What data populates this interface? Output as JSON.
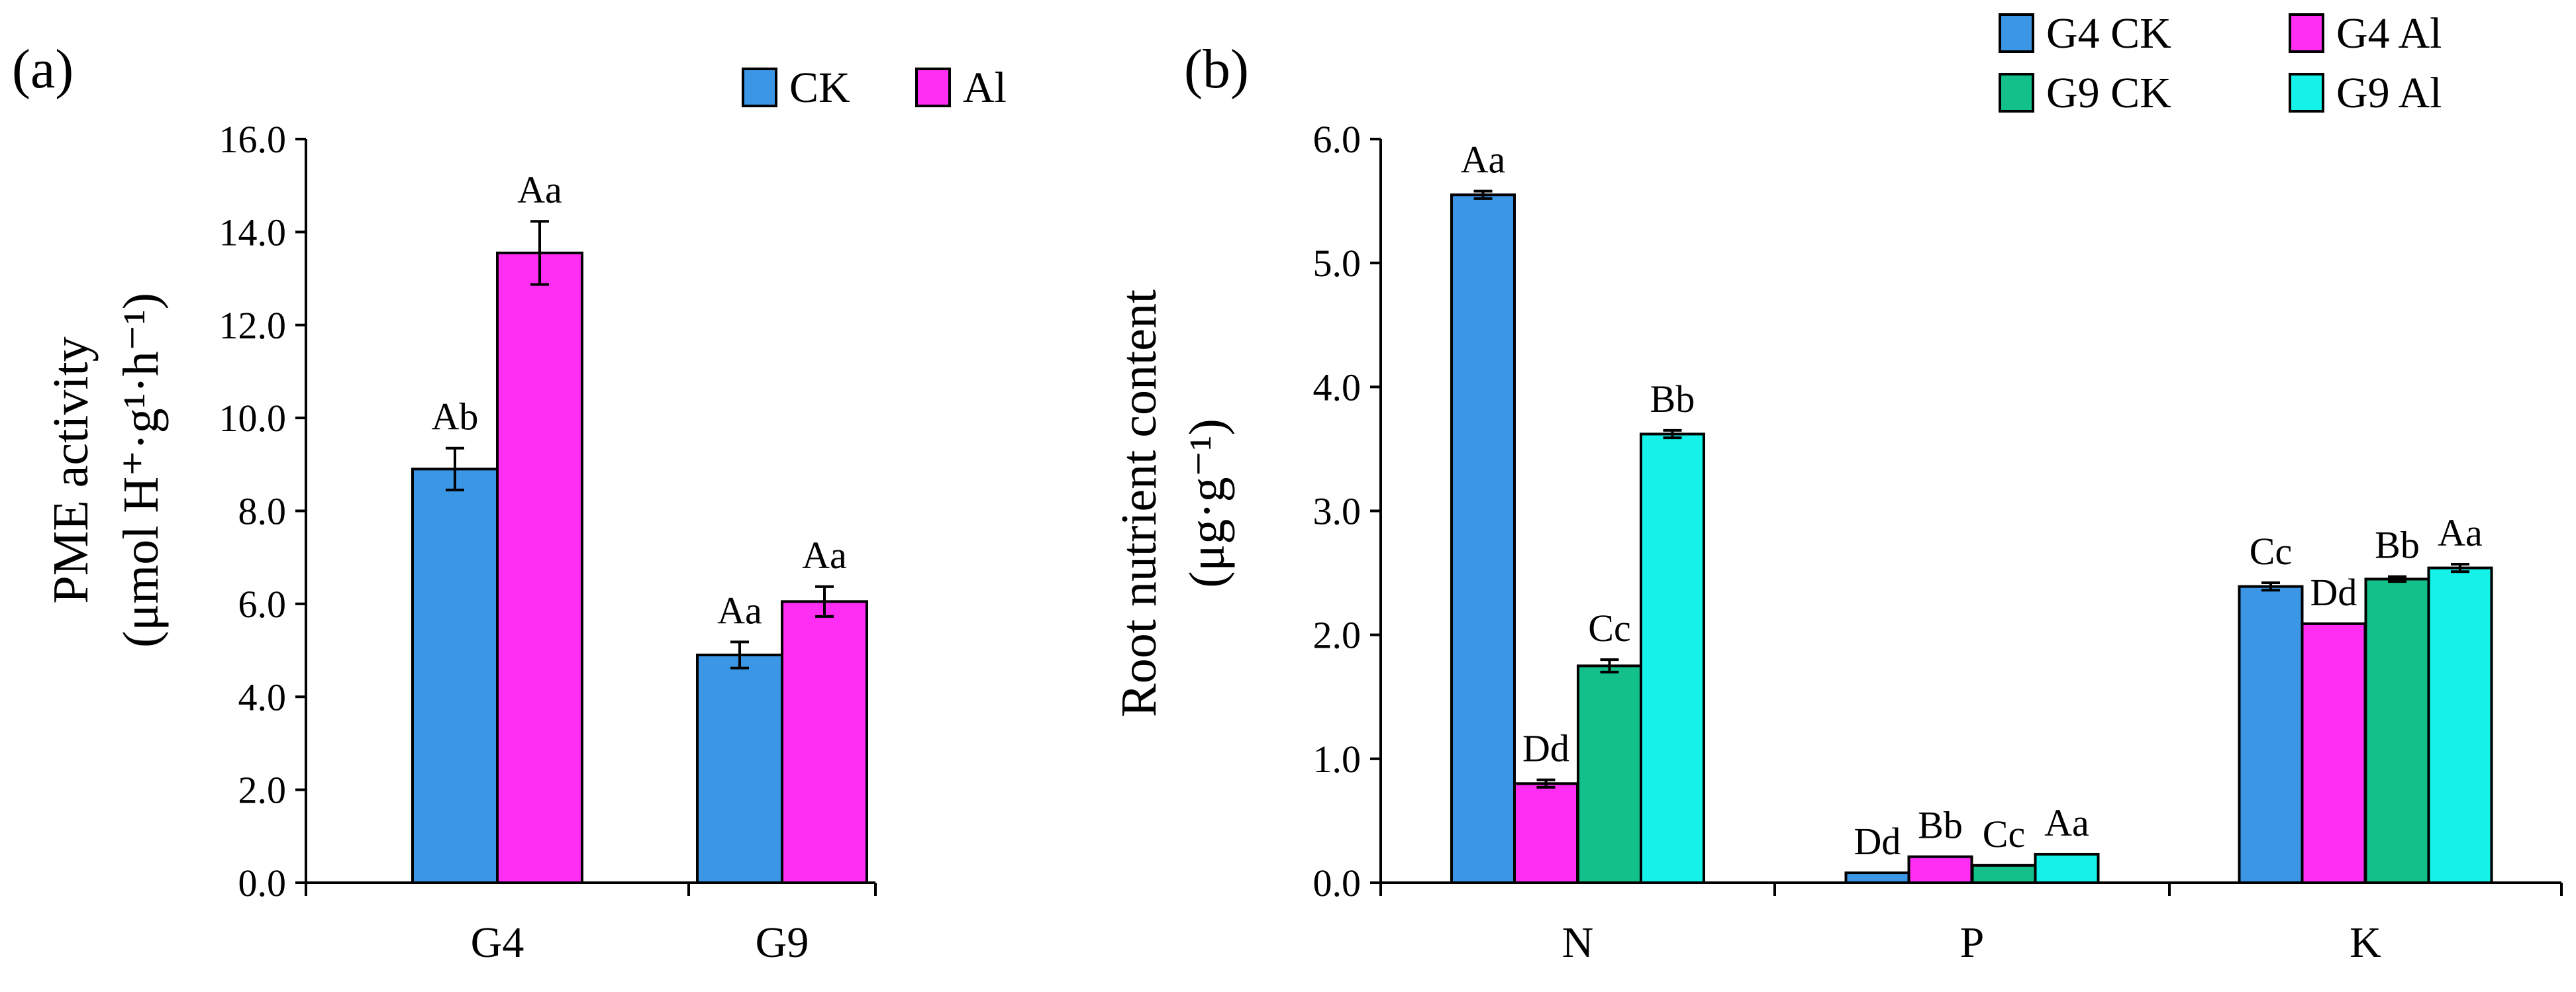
{
  "panels": [
    {
      "id": "a",
      "panel_label": "(a)",
      "y_title_line1": "PME activity",
      "y_title_line2": "(μmol H⁺·g¹·h⁻¹)",
      "legend": [
        {
          "label": "CK",
          "color": "#3c96e6"
        },
        {
          "label": "Al",
          "color": "#ff2ef2"
        }
      ]
    },
    {
      "id": "b",
      "panel_label": "(b)",
      "y_title_line1": "Root nutrient content",
      "y_title_line2": "(μg·g⁻¹)",
      "legend": [
        {
          "label": "G4 CK",
          "color": "#3c96e6"
        },
        {
          "label": "G4 Al",
          "color": "#ff2ef2"
        },
        {
          "label": "G9 CK",
          "color": "#14c08a"
        },
        {
          "label": "G9 Al",
          "color": "#14f2ea"
        }
      ]
    }
  ],
  "chart_data": [
    {
      "type": "bar",
      "title": "",
      "xlabel": "",
      "ylabel": "PME activity (μmol H⁺·g¹·h⁻¹)",
      "ylim": [
        0,
        16
      ],
      "yticks": [
        "0.0",
        "2.0",
        "4.0",
        "6.0",
        "8.0",
        "10.0",
        "12.0",
        "14.0",
        "16.0"
      ],
      "categories": [
        "G4",
        "G9"
      ],
      "series": [
        {
          "name": "CK",
          "color": "#3c96e6",
          "values": [
            8.9,
            4.9
          ],
          "errors": [
            0.45,
            0.28
          ],
          "labels": [
            "Ab",
            "Aa"
          ]
        },
        {
          "name": "Al",
          "color": "#ff2ef2",
          "values": [
            13.55,
            6.05
          ],
          "errors": [
            0.68,
            0.32
          ],
          "labels": [
            "Aa",
            "Aa"
          ]
        }
      ]
    },
    {
      "type": "bar",
      "title": "",
      "xlabel": "",
      "ylabel": "Root nutrient content (μg·g⁻¹)",
      "ylim": [
        0,
        6
      ],
      "yticks": [
        "0.0",
        "1.0",
        "2.0",
        "3.0",
        "4.0",
        "5.0",
        "6.0"
      ],
      "categories": [
        "N",
        "P",
        "K"
      ],
      "series": [
        {
          "name": "G4 CK",
          "color": "#3c96e6",
          "values": [
            5.55,
            0.08,
            2.39
          ],
          "errors": [
            0.03,
            0.0,
            0.03
          ],
          "labels": [
            "Aa",
            "Dd",
            "Cc"
          ]
        },
        {
          "name": "G4 Al",
          "color": "#ff2ef2",
          "values": [
            0.8,
            0.21,
            2.09
          ],
          "errors": [
            0.03,
            0.0,
            0.0
          ],
          "labels": [
            "Dd",
            "Bb",
            "Dd"
          ]
        },
        {
          "name": "G9 CK",
          "color": "#14c08a",
          "values": [
            1.75,
            0.14,
            2.45
          ],
          "errors": [
            0.05,
            0.0,
            0.02
          ],
          "labels": [
            "Cc",
            "Cc",
            "Bb"
          ]
        },
        {
          "name": "G9 Al",
          "color": "#14f2ea",
          "values": [
            3.62,
            0.23,
            2.54
          ],
          "errors": [
            0.03,
            0.0,
            0.03
          ],
          "labels": [
            "Bb",
            "Aa",
            "Aa"
          ]
        }
      ]
    }
  ]
}
